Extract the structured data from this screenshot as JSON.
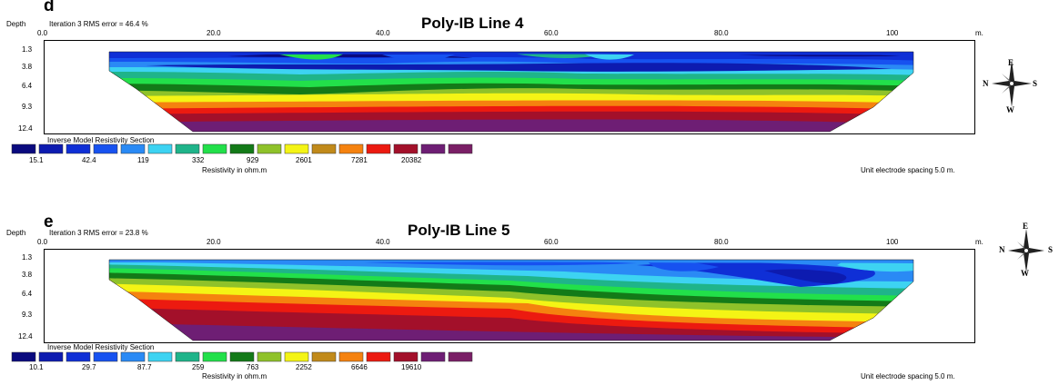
{
  "panels": [
    {
      "letter": "d",
      "title": "Poly-IB Line 4",
      "depth_label": "Depth",
      "iteration_text": "Iteration 3 RMS error = 46.4 %",
      "x_ticks": [
        "0.0",
        "20.0",
        "40.0",
        "60.0",
        "80.0",
        "100"
      ],
      "x_unit": "m.",
      "depth_ticks": [
        "1.3",
        "3.8",
        "6.4",
        "9.3",
        "12.4"
      ],
      "legend_title": "Inverse Model Resistivity Section",
      "legend_values": [
        "15.1",
        "42.4",
        "119",
        "332",
        "929",
        "2601",
        "7281",
        "20382"
      ],
      "legend_unit": "Resistivity in ohm.m",
      "spacing_note": "Unit electrode spacing 5.0 m.",
      "compass": {
        "n": "N",
        "s": "S",
        "e": "E",
        "w": "W"
      }
    },
    {
      "letter": "e",
      "title": "Poly-IB Line 5",
      "depth_label": "Depth",
      "iteration_text": "Iteration 3 RMS error = 23.8 %",
      "x_ticks": [
        "0.0",
        "20.0",
        "40.0",
        "60.0",
        "80.0",
        "100"
      ],
      "x_unit": "m.",
      "depth_ticks": [
        "1.3",
        "3.8",
        "6.4",
        "9.3",
        "12.4"
      ],
      "legend_title": "Inverse Model Resistivity Section",
      "legend_values": [
        "10.1",
        "29.7",
        "87.7",
        "259",
        "763",
        "2252",
        "6646",
        "19610"
      ],
      "legend_unit": "Resistivity in ohm.m",
      "spacing_note": "Unit electrode spacing 5.0 m.",
      "compass": {
        "n": "N",
        "s": "S",
        "e": "E",
        "w": "W"
      }
    }
  ],
  "colors": {
    "scale": [
      "#0a0a7e",
      "#0d1bb0",
      "#0f2fd6",
      "#1752f0",
      "#2a8af5",
      "#3dd3f2",
      "#1fb48a",
      "#22e04a",
      "#137a18",
      "#8fc22a",
      "#f4f415",
      "#c18a1a",
      "#f5820f",
      "#ec1a10",
      "#a3102a",
      "#6e1e74"
    ]
  }
}
